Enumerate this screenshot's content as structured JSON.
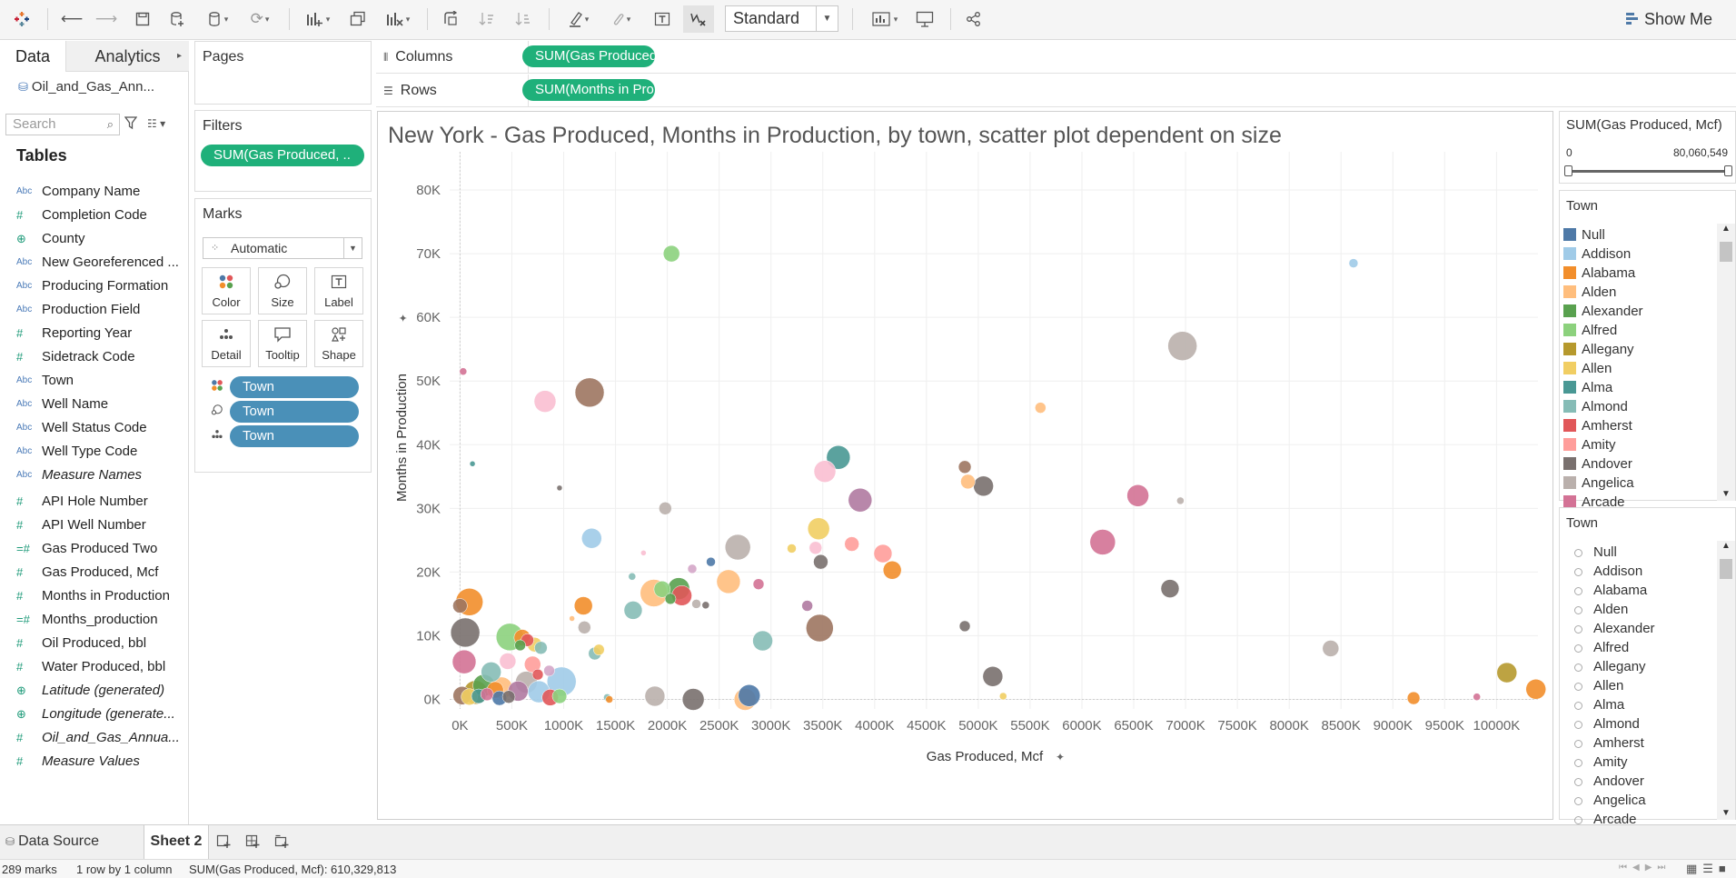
{
  "toolbar": {
    "fit_label": "Standard",
    "show_me_label": "Show Me",
    "icons": [
      "tableau-logo-icon",
      "back-icon",
      "forward-icon",
      "save-icon",
      "new-datasource-icon",
      "pause-updates-icon",
      "refresh-icon",
      "new-worksheet-icon",
      "duplicate-icon",
      "clear-sheet-icon",
      "swap-icon",
      "sort-asc-icon",
      "sort-desc-icon",
      "highlight-icon",
      "group-icon",
      "label-icon",
      "fix-axes-icon",
      "chart-type-icon",
      "presentation-icon",
      "share-icon"
    ]
  },
  "data_pane": {
    "tab_data": "Data",
    "tab_analytics": "Analytics",
    "datasource": "Oil_and_Gas_Ann...",
    "search_placeholder": "Search",
    "tables_heading": "Tables",
    "fields": [
      {
        "type": "Abc",
        "label": "Company Name",
        "italic": false
      },
      {
        "type": "#",
        "label": "Completion Code",
        "italic": false
      },
      {
        "type": "geo",
        "label": "County",
        "italic": false
      },
      {
        "type": "Abc",
        "label": "New Georeferenced ...",
        "italic": false
      },
      {
        "type": "Abc",
        "label": "Producing Formation",
        "italic": false
      },
      {
        "type": "Abc",
        "label": "Production Field",
        "italic": false
      },
      {
        "type": "#",
        "label": "Reporting Year",
        "italic": false
      },
      {
        "type": "#",
        "label": "Sidetrack Code",
        "italic": false
      },
      {
        "type": "Abc",
        "label": "Town",
        "italic": false
      },
      {
        "type": "Abc",
        "label": "Well Name",
        "italic": false
      },
      {
        "type": "Abc",
        "label": "Well Status Code",
        "italic": false
      },
      {
        "type": "Abc",
        "label": "Well Type Code",
        "italic": false
      },
      {
        "type": "Abc",
        "label": "Measure Names",
        "italic": true
      },
      {
        "type": "#",
        "label": "API Hole Number",
        "italic": false
      },
      {
        "type": "#",
        "label": "API Well Number",
        "italic": false
      },
      {
        "type": "=#",
        "label": "Gas Produced Two",
        "italic": false
      },
      {
        "type": "#",
        "label": "Gas Produced, Mcf",
        "italic": false
      },
      {
        "type": "#",
        "label": "Months in Production",
        "italic": false
      },
      {
        "type": "=#",
        "label": "Months_production",
        "italic": false
      },
      {
        "type": "#",
        "label": "Oil Produced, bbl",
        "italic": false
      },
      {
        "type": "#",
        "label": "Water Produced, bbl",
        "italic": false
      },
      {
        "type": "geo",
        "label": "Latitude (generated)",
        "italic": true
      },
      {
        "type": "geo",
        "label": "Longitude (generate...",
        "italic": true
      },
      {
        "type": "#",
        "label": "Oil_and_Gas_Annua...",
        "italic": true
      },
      {
        "type": "#",
        "label": "Measure Values",
        "italic": true
      }
    ]
  },
  "pages": {
    "title": "Pages"
  },
  "filters": {
    "title": "Filters",
    "pill": "SUM(Gas Produced, .."
  },
  "marks": {
    "title": "Marks",
    "type": "Automatic",
    "buttons": [
      "Color",
      "Size",
      "Label",
      "Detail",
      "Tooltip",
      "Shape"
    ],
    "pills": [
      "Town",
      "Town",
      "Town"
    ]
  },
  "columns": {
    "label": "Columns",
    "pill": "SUM(Gas Produced,..."
  },
  "rows": {
    "label": "Rows",
    "pill": "SUM(Months in Pro.."
  },
  "range_legend": {
    "title": "SUM(Gas Produced, Mcf)",
    "min": "0",
    "max": "80,060,549"
  },
  "color_legend": {
    "title": "Town",
    "items": [
      {
        "name": "Null",
        "color": "#4e79a7"
      },
      {
        "name": "Addison",
        "color": "#a0cbe8"
      },
      {
        "name": "Alabama",
        "color": "#f28e2b"
      },
      {
        "name": "Alden",
        "color": "#ffbe7d"
      },
      {
        "name": "Alexander",
        "color": "#59a14f"
      },
      {
        "name": "Alfred",
        "color": "#8cd17d"
      },
      {
        "name": "Allegany",
        "color": "#b6992d"
      },
      {
        "name": "Allen",
        "color": "#f1ce63"
      },
      {
        "name": "Alma",
        "color": "#499894"
      },
      {
        "name": "Almond",
        "color": "#86bcb6"
      },
      {
        "name": "Amherst",
        "color": "#e15759"
      },
      {
        "name": "Amity",
        "color": "#ff9d9a"
      },
      {
        "name": "Andover",
        "color": "#79706e"
      },
      {
        "name": "Angelica",
        "color": "#bab0ac"
      },
      {
        "name": "Arcade",
        "color": "#d37295"
      }
    ]
  },
  "size_legend": {
    "title": "Town",
    "items": [
      "Null",
      "Addison",
      "Alabama",
      "Alden",
      "Alexander",
      "Alfred",
      "Allegany",
      "Allen",
      "Alma",
      "Almond",
      "Amherst",
      "Amity",
      "Andover",
      "Angelica",
      "Arcade"
    ]
  },
  "chart_data": {
    "type": "scatter",
    "title": "New York - Gas Produced, Months in Production, by town, scatter plot dependent on size",
    "xlabel": "Gas Produced, Mcf",
    "ylabel": "Months in Production",
    "xlim": [
      -100,
      10400
    ],
    "ylim": [
      -1500,
      86000
    ],
    "x_unit_note": "x values in K (thousands of Mcf)",
    "xticks": [
      0,
      500,
      1000,
      1500,
      2000,
      2500,
      3000,
      3500,
      4000,
      4500,
      5000,
      5500,
      6000,
      6500,
      7000,
      7500,
      8000,
      8500,
      9000,
      9500,
      10000
    ],
    "xtick_labels": [
      "0K",
      "500K",
      "1000K",
      "1500K",
      "2000K",
      "2500K",
      "3000K",
      "3500K",
      "4000K",
      "4500K",
      "5000K",
      "5500K",
      "6000K",
      "6500K",
      "7000K",
      "7500K",
      "8000K",
      "8500K",
      "9000K",
      "9500K",
      "10000K"
    ],
    "yticks": [
      0,
      10000,
      20000,
      30000,
      40000,
      50000,
      60000,
      70000,
      80000
    ],
    "ytick_labels": [
      "0K",
      "10K",
      "20K",
      "30K",
      "40K",
      "50K",
      "60K",
      "70K",
      "80K"
    ],
    "grid": true,
    "points": [
      {
        "x": 2040,
        "y": 70000,
        "s": 9,
        "c": "#8cd17d"
      },
      {
        "x": 8620,
        "y": 68500,
        "s": 5,
        "c": "#a0cbe8"
      },
      {
        "x": 6970,
        "y": 55500,
        "s": 16,
        "c": "#bab0ac"
      },
      {
        "x": 30,
        "y": 51500,
        "s": 4,
        "c": "#d37295"
      },
      {
        "x": 820,
        "y": 46800,
        "s": 12,
        "c": "#fabfd2"
      },
      {
        "x": 1250,
        "y": 48200,
        "s": 16,
        "c": "#9d7660"
      },
      {
        "x": 5600,
        "y": 45800,
        "s": 6,
        "c": "#ffbe7d"
      },
      {
        "x": 3650,
        "y": 38000,
        "s": 13,
        "c": "#499894"
      },
      {
        "x": 3520,
        "y": 35800,
        "s": 12,
        "c": "#fabfd2"
      },
      {
        "x": 120,
        "y": 37000,
        "s": 3,
        "c": "#499894"
      },
      {
        "x": 960,
        "y": 33200,
        "s": 3,
        "c": "#79706e"
      },
      {
        "x": 4870,
        "y": 36500,
        "s": 7,
        "c": "#9d7660"
      },
      {
        "x": 4900,
        "y": 34200,
        "s": 8,
        "c": "#ffbe7d"
      },
      {
        "x": 5050,
        "y": 33500,
        "s": 11,
        "c": "#79706e"
      },
      {
        "x": 3860,
        "y": 31300,
        "s": 13,
        "c": "#b07aa1"
      },
      {
        "x": 6540,
        "y": 32000,
        "s": 12,
        "c": "#d37295"
      },
      {
        "x": 6950,
        "y": 31200,
        "s": 4,
        "c": "#bab0ac"
      },
      {
        "x": 1980,
        "y": 30000,
        "s": 7,
        "c": "#bab0ac"
      },
      {
        "x": 1270,
        "y": 25300,
        "s": 11,
        "c": "#a0cbe8"
      },
      {
        "x": 3460,
        "y": 26800,
        "s": 12,
        "c": "#f1ce63"
      },
      {
        "x": 2680,
        "y": 23900,
        "s": 14,
        "c": "#bab0ac"
      },
      {
        "x": 6200,
        "y": 24700,
        "s": 14,
        "c": "#d37295"
      },
      {
        "x": 1770,
        "y": 23000,
        "s": 3,
        "c": "#fabfd2"
      },
      {
        "x": 3200,
        "y": 23700,
        "s": 5,
        "c": "#f1ce63"
      },
      {
        "x": 3430,
        "y": 23800,
        "s": 7,
        "c": "#fabfd2"
      },
      {
        "x": 3780,
        "y": 24400,
        "s": 8,
        "c": "#ff9d9a"
      },
      {
        "x": 4080,
        "y": 22900,
        "s": 10,
        "c": "#ff9d9a"
      },
      {
        "x": 3480,
        "y": 21600,
        "s": 8,
        "c": "#79706e"
      },
      {
        "x": 4170,
        "y": 20300,
        "s": 10,
        "c": "#f28e2b"
      },
      {
        "x": 2420,
        "y": 21600,
        "s": 5,
        "c": "#4e79a7"
      },
      {
        "x": 2240,
        "y": 20500,
        "s": 5,
        "c": "#d4a6c8"
      },
      {
        "x": 2590,
        "y": 18500,
        "s": 13,
        "c": "#ffbe7d"
      },
      {
        "x": 1660,
        "y": 19300,
        "s": 4,
        "c": "#86bcb6"
      },
      {
        "x": 2880,
        "y": 18100,
        "s": 6,
        "c": "#d37295"
      },
      {
        "x": 1870,
        "y": 16700,
        "s": 15,
        "c": "#ffbe7d"
      },
      {
        "x": 1950,
        "y": 17300,
        "s": 9,
        "c": "#8cd17d"
      },
      {
        "x": 2110,
        "y": 17400,
        "s": 12,
        "c": "#59a14f"
      },
      {
        "x": 2140,
        "y": 16300,
        "s": 11,
        "c": "#e15759"
      },
      {
        "x": 2030,
        "y": 15800,
        "s": 6,
        "c": "#59a14f"
      },
      {
        "x": 2280,
        "y": 15000,
        "s": 5,
        "c": "#bab0ac"
      },
      {
        "x": 2370,
        "y": 14800,
        "s": 4,
        "c": "#79706e"
      },
      {
        "x": 1190,
        "y": 14700,
        "s": 10,
        "c": "#f28e2b"
      },
      {
        "x": 1670,
        "y": 14000,
        "s": 10,
        "c": "#86bcb6"
      },
      {
        "x": 3350,
        "y": 14700,
        "s": 6,
        "c": "#b07aa1"
      },
      {
        "x": 1080,
        "y": 12700,
        "s": 3,
        "c": "#ffbe7d"
      },
      {
        "x": 1200,
        "y": 11300,
        "s": 7,
        "c": "#bab0ac"
      },
      {
        "x": 6850,
        "y": 17400,
        "s": 10,
        "c": "#79706e"
      },
      {
        "x": 4870,
        "y": 11500,
        "s": 6,
        "c": "#79706e"
      },
      {
        "x": 3470,
        "y": 11200,
        "s": 15,
        "c": "#9d7660"
      },
      {
        "x": 2920,
        "y": 9200,
        "s": 11,
        "c": "#86bcb6"
      },
      {
        "x": 1340,
        "y": 7800,
        "s": 6,
        "c": "#f1ce63"
      },
      {
        "x": 1300,
        "y": 7200,
        "s": 7,
        "c": "#86bcb6"
      },
      {
        "x": 8400,
        "y": 8000,
        "s": 9,
        "c": "#bab0ac"
      },
      {
        "x": 90,
        "y": 15300,
        "s": 15,
        "c": "#f28e2b"
      },
      {
        "x": 0,
        "y": 14700,
        "s": 8,
        "c": "#9d7660"
      },
      {
        "x": 50,
        "y": 10500,
        "s": 16,
        "c": "#79706e"
      },
      {
        "x": 480,
        "y": 9800,
        "s": 15,
        "c": "#8cd17d"
      },
      {
        "x": 600,
        "y": 9700,
        "s": 9,
        "c": "#f28e2b"
      },
      {
        "x": 650,
        "y": 9300,
        "s": 7,
        "c": "#e15759"
      },
      {
        "x": 720,
        "y": 8600,
        "s": 8,
        "c": "#f1ce63"
      },
      {
        "x": 580,
        "y": 8500,
        "s": 6,
        "c": "#59a14f"
      },
      {
        "x": 780,
        "y": 8100,
        "s": 7,
        "c": "#86bcb6"
      },
      {
        "x": 40,
        "y": 5900,
        "s": 13,
        "c": "#d37295"
      },
      {
        "x": 300,
        "y": 4300,
        "s": 11,
        "c": "#86bcb6"
      },
      {
        "x": 460,
        "y": 6000,
        "s": 9,
        "c": "#fabfd2"
      },
      {
        "x": 700,
        "y": 5500,
        "s": 9,
        "c": "#ff9d9a"
      },
      {
        "x": 750,
        "y": 3900,
        "s": 6,
        "c": "#e15759"
      },
      {
        "x": 980,
        "y": 2800,
        "s": 16,
        "c": "#a0cbe8"
      },
      {
        "x": 860,
        "y": 4500,
        "s": 6,
        "c": "#d4a6c8"
      },
      {
        "x": 230,
        "y": 2200,
        "s": 12,
        "c": "#59a14f"
      },
      {
        "x": 150,
        "y": 1100,
        "s": 13,
        "c": "#b6992d"
      },
      {
        "x": 340,
        "y": 1500,
        "s": 9,
        "c": "#f28e2b"
      },
      {
        "x": 400,
        "y": 1800,
        "s": 12,
        "c": "#ffbe7d"
      },
      {
        "x": 560,
        "y": 1300,
        "s": 11,
        "c": "#b07aa1"
      },
      {
        "x": 640,
        "y": 2700,
        "s": 12,
        "c": "#bab0ac"
      },
      {
        "x": 760,
        "y": 1200,
        "s": 12,
        "c": "#a0cbe8"
      },
      {
        "x": 870,
        "y": 300,
        "s": 9,
        "c": "#e15759"
      },
      {
        "x": 960,
        "y": 500,
        "s": 8,
        "c": "#8cd17d"
      },
      {
        "x": 20,
        "y": 600,
        "s": 10,
        "c": "#9d7660"
      },
      {
        "x": 90,
        "y": 400,
        "s": 9,
        "c": "#f1ce63"
      },
      {
        "x": 180,
        "y": 500,
        "s": 8,
        "c": "#499894"
      },
      {
        "x": 260,
        "y": 800,
        "s": 7,
        "c": "#d37295"
      },
      {
        "x": 380,
        "y": 200,
        "s": 8,
        "c": "#4e79a7"
      },
      {
        "x": 470,
        "y": 400,
        "s": 7,
        "c": "#79706e"
      },
      {
        "x": 1420,
        "y": 300,
        "s": 4,
        "c": "#86bcb6"
      },
      {
        "x": 1440,
        "y": 0,
        "s": 4,
        "c": "#f28e2b"
      },
      {
        "x": 1880,
        "y": 500,
        "s": 11,
        "c": "#bab0ac"
      },
      {
        "x": 2250,
        "y": 0,
        "s": 12,
        "c": "#79706e"
      },
      {
        "x": 2750,
        "y": 0,
        "s": 12,
        "c": "#ffbe7d"
      },
      {
        "x": 2790,
        "y": 600,
        "s": 12,
        "c": "#4e79a7"
      },
      {
        "x": 5140,
        "y": 3600,
        "s": 11,
        "c": "#79706e"
      },
      {
        "x": 5240,
        "y": 500,
        "s": 4,
        "c": "#f1ce63"
      },
      {
        "x": 9200,
        "y": 200,
        "s": 7,
        "c": "#f28e2b"
      },
      {
        "x": 9810,
        "y": 400,
        "s": 4,
        "c": "#d37295"
      },
      {
        "x": 10100,
        "y": 4200,
        "s": 11,
        "c": "#b6992d"
      },
      {
        "x": 10380,
        "y": 1600,
        "s": 11,
        "c": "#f28e2b"
      }
    ]
  },
  "sheet_tabs": {
    "datasource_label": "Data Source",
    "active_sheet": "Sheet 2"
  },
  "status": {
    "marks": "289 marks",
    "dims": "1 row by 1 column",
    "sum": "SUM(Gas Produced, Mcf): 610,329,813"
  }
}
